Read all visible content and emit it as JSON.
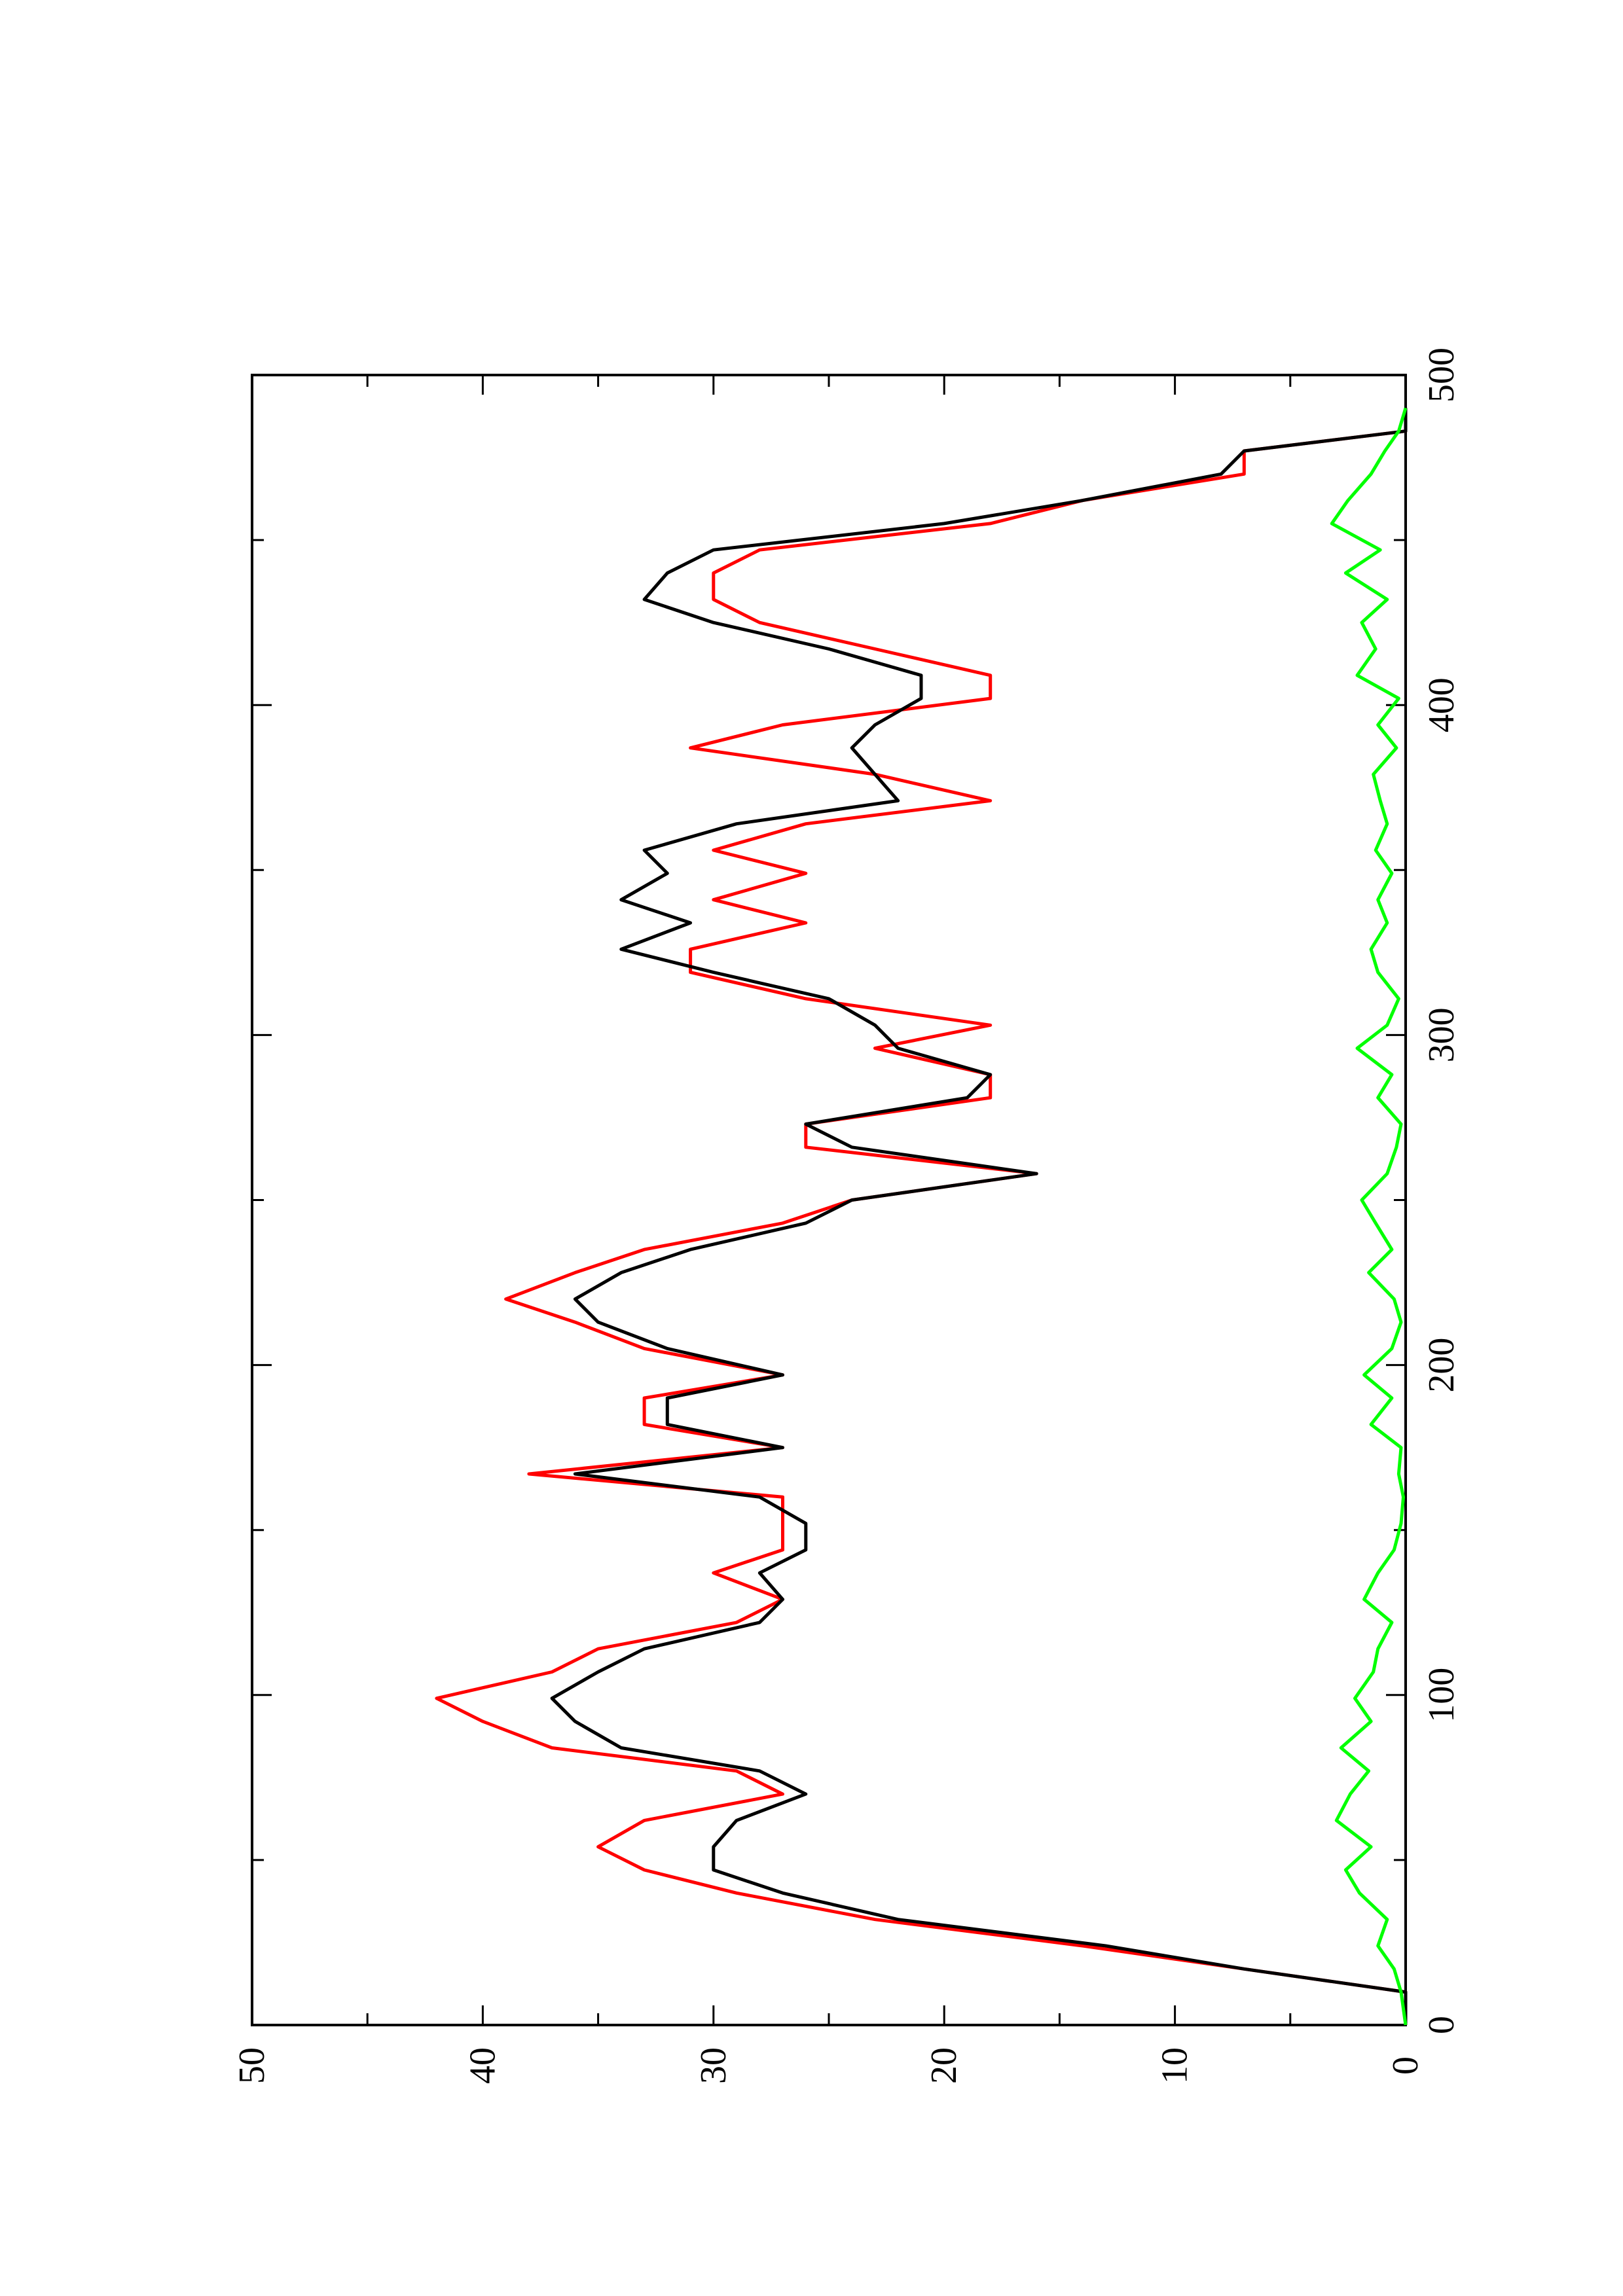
{
  "chart_data": {
    "type": "line",
    "orientation": "page rotated 90 degrees counter-clockwise",
    "title": "",
    "xlabel": "",
    "ylabel": "",
    "xlim": [
      0,
      500
    ],
    "ylim": [
      0,
      50
    ],
    "x_ticks": [
      0,
      100,
      200,
      300,
      400,
      500
    ],
    "x_tick_labels": [
      "0",
      "100",
      "200",
      "300",
      "400",
      "500"
    ],
    "x_minor_ticks": [
      50,
      150,
      250,
      350,
      450
    ],
    "y_ticks": [
      0,
      10,
      20,
      30,
      40,
      50
    ],
    "y_tick_labels": [
      "0",
      "10",
      "20",
      "30",
      "40",
      "50"
    ],
    "y_minor_ticks": [
      5,
      15,
      25,
      35,
      45
    ],
    "grid": false,
    "legend": "none",
    "series": [
      {
        "color": "#ff0000",
        "x": [
          0,
          10,
          17,
          24,
          32,
          40,
          47,
          54,
          62,
          70,
          77,
          84,
          92,
          99,
          107,
          114,
          122,
          129,
          137,
          144,
          152,
          160,
          167,
          175,
          182,
          190,
          197,
          205,
          213,
          220,
          228,
          235,
          243,
          250,
          258,
          266,
          273,
          281,
          288,
          296,
          303,
          311,
          319,
          326,
          334,
          341,
          349,
          356,
          364,
          371,
          379,
          387,
          394,
          402,
          409,
          417,
          425,
          432,
          440,
          447,
          455,
          462,
          470,
          477,
          483,
          490
        ],
        "y": [
          0,
          0,
          7,
          14,
          23,
          29,
          33,
          35,
          33,
          27,
          29,
          37,
          40,
          42,
          37,
          35,
          29,
          27,
          30,
          27,
          27,
          27,
          38,
          27,
          33,
          33,
          27,
          33,
          36,
          39,
          36,
          33,
          27,
          24,
          16,
          26,
          26,
          18,
          18,
          23,
          18,
          26,
          31,
          31,
          26,
          30,
          26,
          30,
          26,
          18,
          23,
          31,
          27,
          18,
          18,
          23,
          28,
          30,
          30,
          28,
          18,
          14,
          7,
          7,
          0,
          0
        ]
      },
      {
        "color": "#000000",
        "x": [
          0,
          10,
          17,
          24,
          32,
          40,
          47,
          54,
          62,
          70,
          77,
          84,
          92,
          99,
          107,
          114,
          122,
          129,
          137,
          144,
          152,
          160,
          167,
          175,
          182,
          190,
          197,
          205,
          213,
          220,
          228,
          235,
          243,
          250,
          258,
          266,
          273,
          281,
          288,
          296,
          303,
          311,
          319,
          326,
          334,
          341,
          349,
          356,
          364,
          371,
          379,
          387,
          394,
          402,
          409,
          417,
          425,
          432,
          440,
          447,
          455,
          462,
          470,
          477,
          483,
          490
        ],
        "y": [
          0,
          0,
          7,
          13,
          22,
          27,
          30,
          30,
          29,
          26,
          28,
          34,
          36,
          37,
          35,
          33,
          28,
          27,
          28,
          26,
          26,
          28,
          36,
          27,
          32,
          32,
          27,
          32,
          35,
          36,
          34,
          31,
          26,
          24,
          16,
          24,
          26,
          19,
          18,
          22,
          23,
          25,
          30,
          34,
          31,
          34,
          32,
          33,
          29,
          22,
          23,
          24,
          23,
          21,
          21,
          25,
          30,
          33,
          32,
          30,
          20,
          14,
          8,
          7,
          0,
          0
        ]
      },
      {
        "color": "#00ff00",
        "x": [
          0,
          10,
          17,
          24,
          32,
          40,
          47,
          54,
          62,
          70,
          77,
          84,
          92,
          99,
          107,
          114,
          122,
          129,
          137,
          144,
          152,
          160,
          167,
          175,
          182,
          190,
          197,
          205,
          213,
          220,
          228,
          235,
          243,
          250,
          258,
          266,
          273,
          281,
          288,
          296,
          303,
          311,
          319,
          326,
          334,
          341,
          349,
          356,
          364,
          371,
          379,
          387,
          394,
          402,
          409,
          417,
          425,
          432,
          440,
          447,
          455,
          462,
          470,
          477,
          483,
          490
        ],
        "y": [
          0,
          0.2,
          0.5,
          1.2,
          0.8,
          2,
          2.6,
          1.5,
          3,
          2.4,
          1.6,
          2.8,
          1.5,
          2.2,
          1.4,
          1.2,
          0.6,
          1.8,
          1.2,
          0.5,
          0.2,
          0.1,
          0.3,
          0.2,
          1.5,
          0.6,
          1.8,
          0.6,
          0.2,
          0.5,
          1.6,
          0.6,
          1.3,
          1.9,
          0.8,
          0.4,
          0.2,
          1.2,
          0.6,
          2.1,
          0.8,
          0.3,
          1.2,
          1.5,
          0.8,
          1.2,
          0.6,
          1.3,
          0.8,
          1.1,
          1.4,
          0.4,
          1.2,
          0.3,
          2.1,
          1.3,
          1.9,
          0.8,
          2.6,
          1.1,
          3.2,
          2.5,
          1.5,
          0.9,
          0.3,
          0
        ]
      }
    ]
  }
}
